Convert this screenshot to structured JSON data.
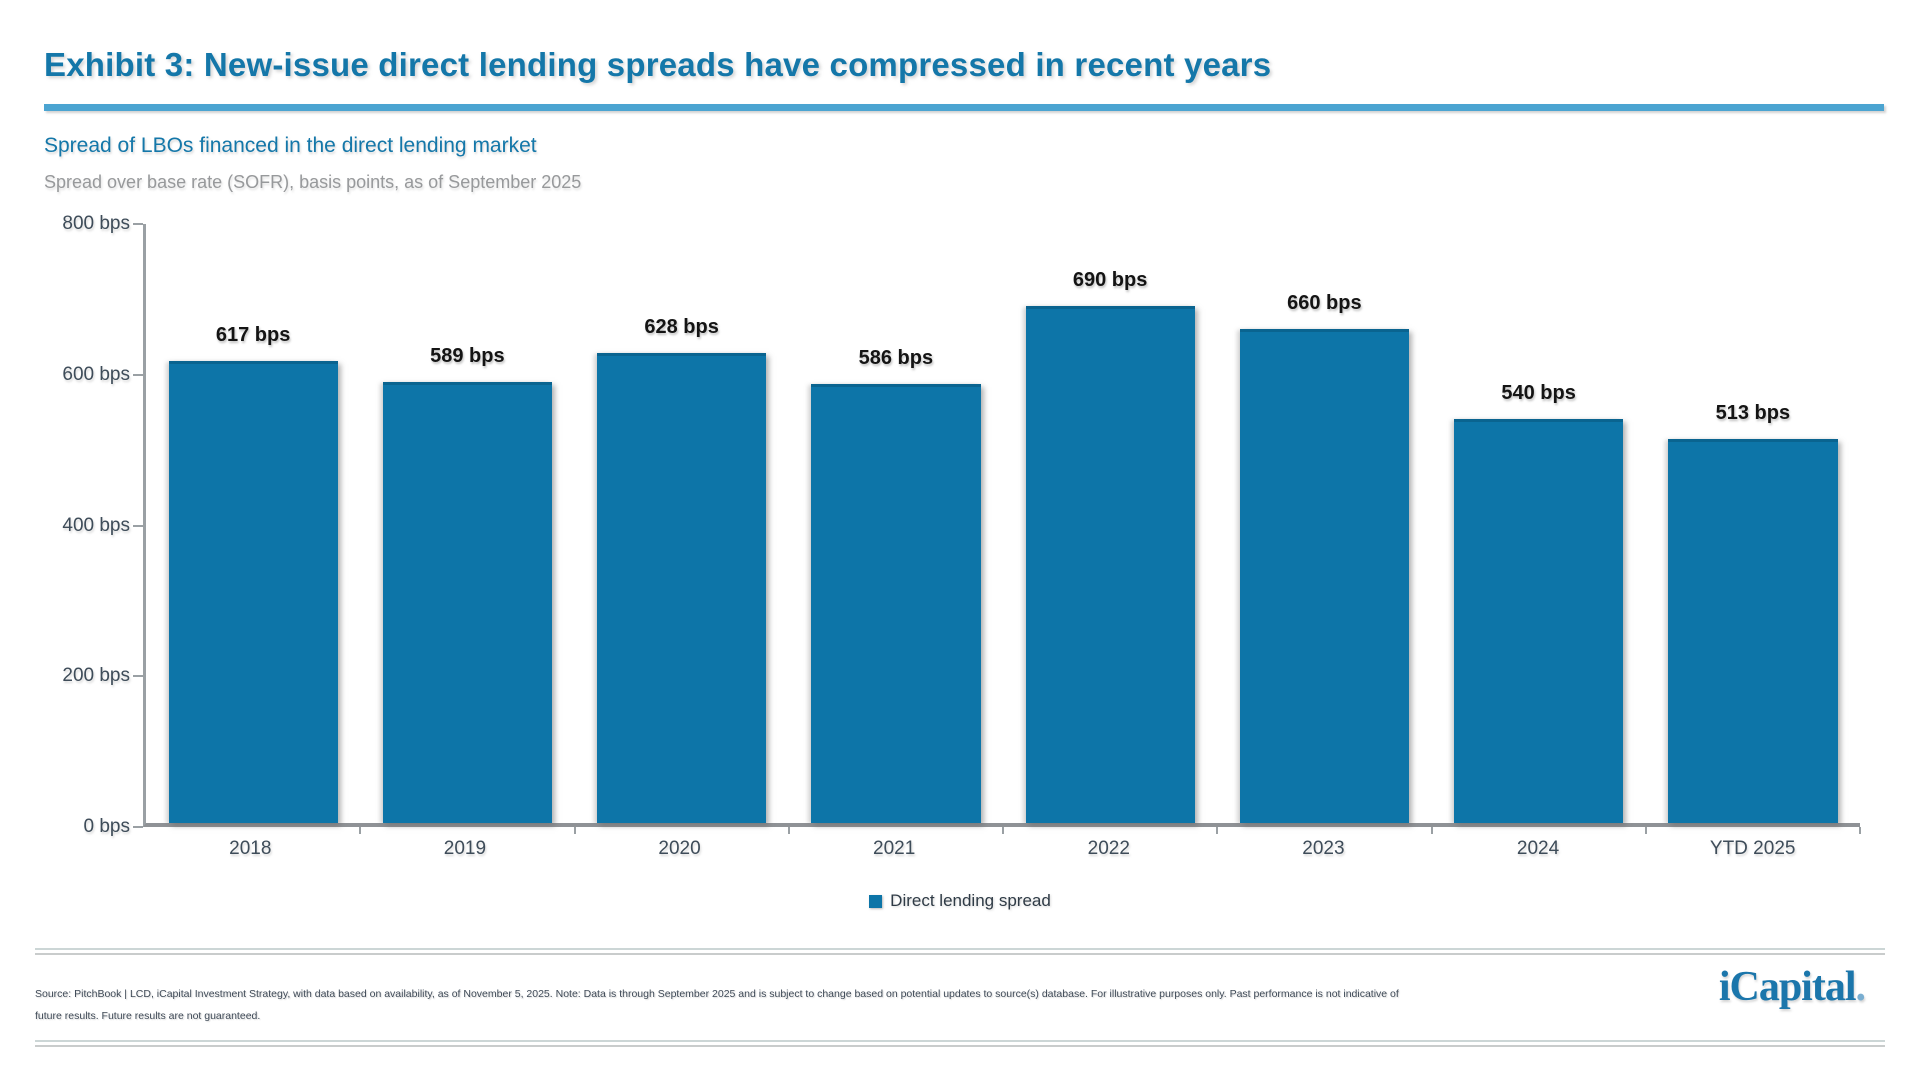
{
  "page": {
    "title": "Exhibit 3: New-issue direct lending spreads have compressed in recent years"
  },
  "chart_data": {
    "type": "bar",
    "title": "Spread of LBOs financed in the direct lending market",
    "subtitle": "Spread over base rate (SOFR), basis points, as of September 2025",
    "categories": [
      "2018",
      "2019",
      "2020",
      "2021",
      "2022",
      "2023",
      "2024",
      "YTD 2025"
    ],
    "values": [
      617,
      589,
      628,
      586,
      690,
      660,
      540,
      513
    ],
    "value_labels": [
      "617 bps",
      "589 bps",
      "628 bps",
      "586 bps",
      "690 bps",
      "660 bps",
      "540 bps",
      "513 bps"
    ],
    "unit": "bps",
    "ylim": [
      0,
      800
    ],
    "ytick_labels": [
      "800 bps",
      "600 bps",
      "400 bps",
      "200 bps",
      "0 bps"
    ],
    "grid": false,
    "legend": {
      "position": "bottom",
      "entries": [
        "Direct lending spread"
      ]
    },
    "bar_color": "#0d75a8"
  },
  "footer": {
    "source": "Source: PitchBook | LCD, iCapital Investment Strategy, with data based on availability, as of November 5, 2025. Note: Data is through September 2025 and is subject to change based on potential updates to source(s) database. For illustrative purposes only. Past performance is not indicative of future results. Future results are not guaranteed.",
    "logo_text": "iCapital",
    "logo_dot": "."
  },
  "colors": {
    "accent_blue": "#1477a9",
    "rule_blue": "#4ba4d1",
    "bar_blue": "#0d75a8",
    "text_slate": "#3e4c59",
    "muted_gray": "#97999b"
  }
}
